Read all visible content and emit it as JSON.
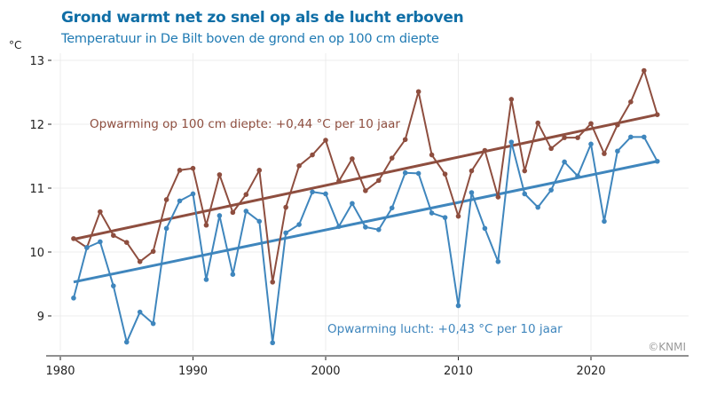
{
  "chart_data": {
    "type": "line",
    "title": "Grond warmt net zo snel op als de lucht erboven",
    "subtitle": "Temperatuur in De Bilt boven de grond en op 100 cm diepte",
    "ylabel": "°C",
    "xlabel": "",
    "xlim": [
      1979,
      2027
    ],
    "ylim": [
      8.4,
      13.1
    ],
    "xticks": [
      1980,
      1990,
      2000,
      2010,
      2020
    ],
    "yticks": [
      9,
      10,
      11,
      12,
      13
    ],
    "grid": true,
    "x": [
      1981,
      1982,
      1983,
      1984,
      1985,
      1986,
      1987,
      1988,
      1989,
      1990,
      1991,
      1992,
      1993,
      1994,
      1995,
      1996,
      1997,
      1998,
      1999,
      2000,
      2001,
      2002,
      2003,
      2004,
      2005,
      2006,
      2007,
      2008,
      2009,
      2010,
      2011,
      2012,
      2013,
      2014,
      2015,
      2016,
      2017,
      2018,
      2019,
      2020,
      2021,
      2022,
      2023,
      2024,
      2025
    ],
    "series": [
      {
        "key": "soil",
        "color": "#8e4e3f",
        "values": [
          10.21,
          10.07,
          10.63,
          10.26,
          10.15,
          9.85,
          10.01,
          10.82,
          11.28,
          11.31,
          10.42,
          11.21,
          10.62,
          10.9,
          11.28,
          9.53,
          10.7,
          11.35,
          11.52,
          11.75,
          11.11,
          11.46,
          10.96,
          11.12,
          11.47,
          11.76,
          12.51,
          11.52,
          11.22,
          10.56,
          11.27,
          11.59,
          10.86,
          12.39,
          11.27,
          12.02,
          11.62,
          11.79,
          11.79,
          12.01,
          11.54,
          11.99,
          12.35,
          12.84,
          12.15
        ],
        "trend": {
          "from": [
            1981,
            10.2
          ],
          "to": [
            2025,
            12.15
          ]
        }
      },
      {
        "key": "air",
        "color": "#3f86bd",
        "values": [
          9.28,
          10.07,
          10.16,
          9.47,
          8.59,
          9.06,
          8.88,
          10.37,
          10.8,
          10.91,
          9.57,
          10.57,
          9.65,
          10.64,
          10.48,
          8.58,
          10.3,
          10.43,
          10.94,
          10.91,
          10.4,
          10.76,
          10.39,
          10.35,
          10.69,
          11.24,
          11.23,
          10.61,
          10.54,
          9.16,
          10.93,
          10.37,
          9.85,
          11.72,
          10.91,
          10.7,
          10.97,
          11.41,
          11.19,
          11.69,
          10.48,
          11.58,
          11.8,
          11.8,
          11.42
        ],
        "trend": {
          "from": [
            1981,
            9.53
          ],
          "to": [
            2025,
            11.42
          ]
        }
      }
    ],
    "annotations": [
      {
        "text": "Opwarming op 100 cm diepte: +0,44 °C per 10 jaar",
        "color": "#8e4e3f"
      },
      {
        "text": "Opwarming lucht: +0,43 °C per 10 jaar",
        "color": "#3f86bd"
      }
    ],
    "credit": "©KNMI"
  }
}
